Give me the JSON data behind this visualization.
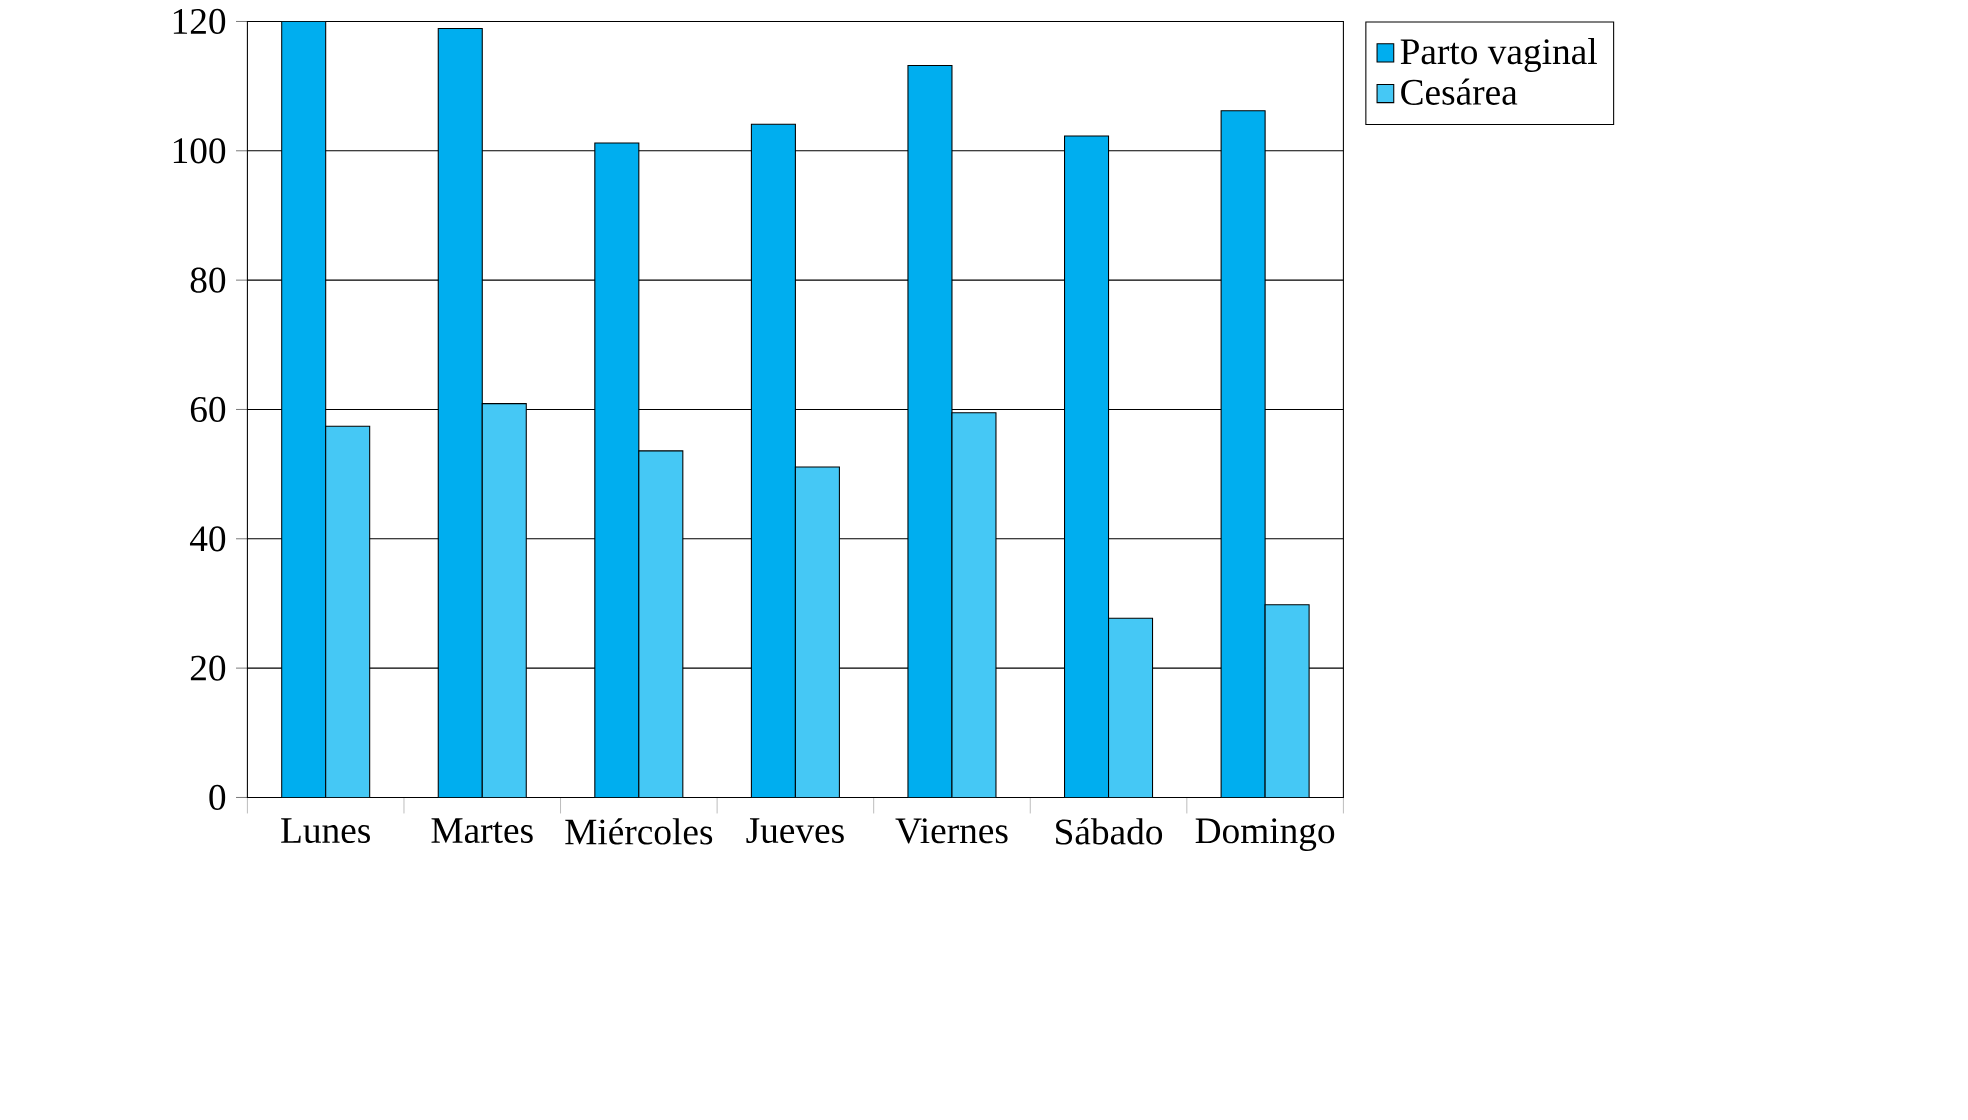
{
  "chart_data": {
    "type": "bar",
    "categories": [
      "Lunes",
      "Martes",
      "Miércoles",
      "Jueves",
      "Viernes",
      "Sábado",
      "Domingo"
    ],
    "series": [
      {
        "name": "Parto vaginal",
        "color": "#00aeef",
        "values": [
          120,
          118.9,
          101.2,
          104.1,
          113.2,
          102.3,
          106.2
        ]
      },
      {
        "name": "Cesárea",
        "color": "#45c8f5",
        "values": [
          57.4,
          60.9,
          53.6,
          51.1,
          59.5,
          27.7,
          29.8
        ]
      }
    ],
    "ylim": [
      0,
      120
    ],
    "yticks": [
      0,
      20,
      40,
      60,
      80,
      100,
      120
    ],
    "grid": "y",
    "legend": "top right"
  }
}
